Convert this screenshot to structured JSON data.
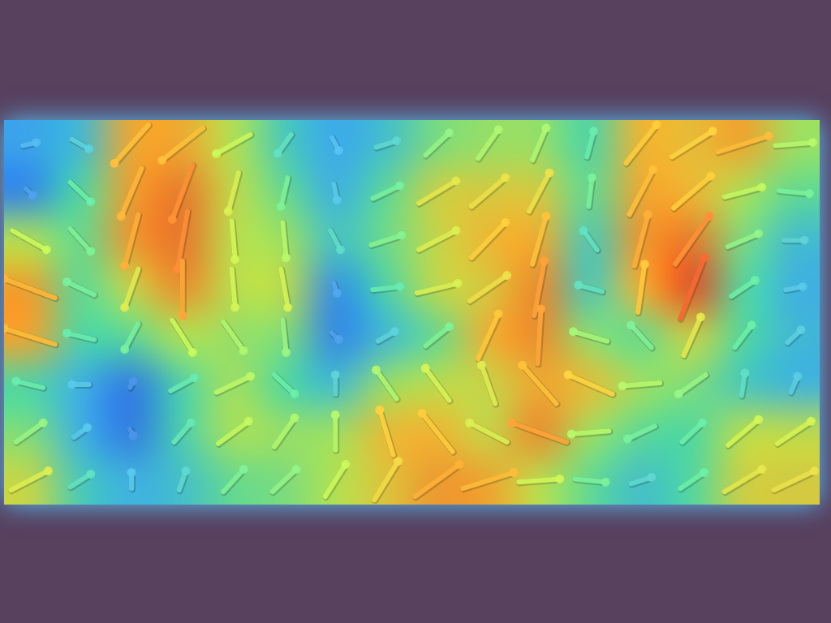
{
  "chart_data": {
    "type": "quiver",
    "x": [
      0.5,
      1.5,
      2.5,
      3.5,
      4.5,
      5.5,
      6.5,
      7.5,
      8.5,
      9.5,
      10.5,
      11.5,
      12.5,
      13.5,
      14.5,
      15.5
    ],
    "y": [
      7.5,
      6.5,
      5.5,
      4.5,
      3.5,
      2.5,
      1.5,
      0.5
    ],
    "u": [
      [
        0.2,
        0.25,
        -0.5,
        -0.6,
        -0.5,
        -0.2,
        0.1,
        0.3,
        0.35,
        0.3,
        0.2,
        0.1,
        0.45,
        0.6,
        0.75,
        0.55
      ],
      [
        0.1,
        0.3,
        -0.3,
        -0.3,
        -0.15,
        -0.1,
        0.05,
        0.4,
        0.55,
        0.5,
        0.3,
        0.05,
        0.35,
        0.55,
        0.55,
        0.45
      ],
      [
        0.5,
        0.3,
        -0.2,
        -0.15,
        0.05,
        0.05,
        0.15,
        0.45,
        0.55,
        0.5,
        0.2,
        -0.2,
        0.2,
        0.5,
        0.45,
        0.3
      ],
      [
        -0.75,
        -0.4,
        -0.2,
        0,
        0.05,
        0.1,
        0.05,
        0.4,
        0.6,
        0.55,
        0.15,
        -0.35,
        0.1,
        0.35,
        0.35,
        0.25
      ],
      [
        -0.75,
        -0.4,
        -0.2,
        0.3,
        0.3,
        0.05,
        0.1,
        0.25,
        0.35,
        0.3,
        0.05,
        -0.5,
        -0.3,
        0.25,
        0.25,
        0.2
      ],
      [
        -0.4,
        -0.25,
        0.05,
        0.35,
        0.5,
        0.3,
        0,
        -0.3,
        -0.35,
        -0.2,
        -0.5,
        -0.65,
        -0.55,
        -0.4,
        0.05,
        0.1
      ],
      [
        0.4,
        0.2,
        0.05,
        0.25,
        0.45,
        0.3,
        0,
        -0.2,
        -0.45,
        -0.55,
        -0.8,
        -0.55,
        -0.4,
        0.3,
        0.45,
        0.5
      ],
      [
        0.55,
        0.3,
        0,
        0.1,
        0.3,
        0.35,
        0.3,
        0.35,
        0.65,
        0.75,
        0.6,
        0.45,
        0.3,
        0.35,
        0.55,
        0.6
      ]
    ],
    "v": [
      [
        0.05,
        -0.15,
        -0.6,
        -0.5,
        -0.3,
        -0.3,
        -0.2,
        0.1,
        0.35,
        0.45,
        0.5,
        0.4,
        0.6,
        0.4,
        0.25,
        0.05
      ],
      [
        -0.1,
        -0.3,
        -0.75,
        -0.85,
        -0.6,
        -0.45,
        -0.25,
        0.2,
        0.35,
        0.45,
        0.6,
        0.45,
        0.7,
        0.5,
        0.15,
        -0.05
      ],
      [
        -0.3,
        -0.35,
        -0.8,
        -0.9,
        -0.6,
        -0.55,
        -0.3,
        0.15,
        0.3,
        0.55,
        0.75,
        0.3,
        0.8,
        0.75,
        0.2,
        0
      ],
      [
        0.3,
        0.2,
        -0.6,
        -0.85,
        -0.6,
        -0.6,
        -0.15,
        0.05,
        0.15,
        0.4,
        0.85,
        0.1,
        0.75,
        0.95,
        0.25,
        0.05
      ],
      [
        0.25,
        0.1,
        -0.4,
        -0.5,
        -0.45,
        -0.5,
        -0.1,
        0.15,
        0.3,
        0.7,
        0.85,
        0.15,
        0.35,
        0.6,
        0.35,
        0.2
      ],
      [
        0.1,
        0,
        0.1,
        0.2,
        0.25,
        -0.3,
        0.3,
        0.45,
        0.5,
        0.6,
        0.6,
        0.3,
        -0.05,
        -0.3,
        0.35,
        0.25
      ],
      [
        0.3,
        0.15,
        -0.1,
        0.3,
        0.35,
        0.45,
        0.55,
        0.7,
        0.6,
        0.3,
        0.3,
        -0.05,
        -0.2,
        0.3,
        0.4,
        0.35
      ],
      [
        0.3,
        0.2,
        0.25,
        0.3,
        0.35,
        0.35,
        0.5,
        0.6,
        0.5,
        0.25,
        0.05,
        -0.05,
        0.1,
        0.25,
        0.35,
        0.3
      ]
    ],
    "xlim": [
      0,
      16
    ],
    "ylim": [
      0,
      8
    ],
    "grid": false,
    "tick_labels": false
  }
}
